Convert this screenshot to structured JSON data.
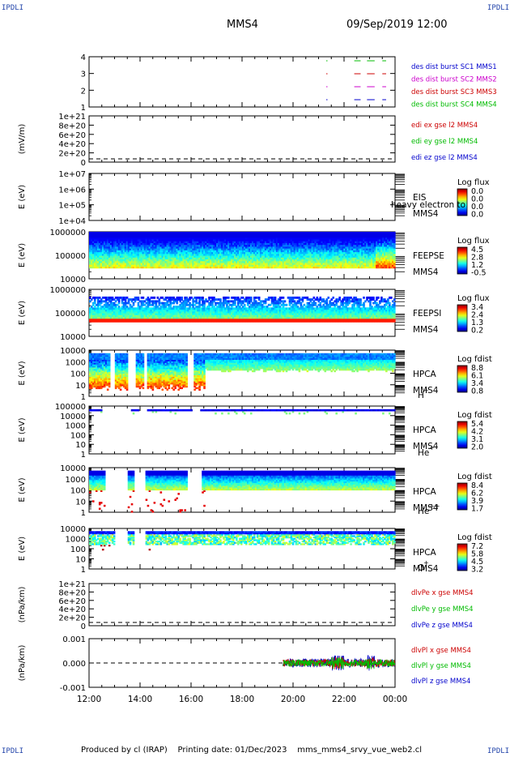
{
  "corner_label": "IPDLI",
  "header": {
    "spacecraft": "MMS4",
    "datetime": "09/Sep/2019 12:00"
  },
  "footer": {
    "producer": "Produced by cl (IRAP)",
    "printing": "Printing date: 01/Dec/2023",
    "file": "mms_mms4_srvy_vue_web2.cl"
  },
  "chart_data": {
    "type": "heatmap",
    "x_ticks": [
      "12:00",
      "14:00",
      "16:00",
      "18:00",
      "20:00",
      "22:00",
      "00:00"
    ],
    "x_range_hours": [
      12,
      24
    ],
    "panels": [
      {
        "id": "burst",
        "type": "line",
        "ytick_labels": [
          "1",
          "2",
          "3",
          "4"
        ],
        "ylabel": "",
        "legend": [
          {
            "text": "des dist burst SC1 MMS1",
            "color": "#0000cc"
          },
          {
            "text": "des dist burst SC2 MMS2",
            "color": "#cc00cc"
          },
          {
            "text": "des dist burst SC3 MMS3",
            "color": "#cc0000"
          },
          {
            "text": "des dist burst SC4 MMS4",
            "color": "#00bb00"
          }
        ],
        "segments_hours": [
          [
            21.3,
            21.35
          ],
          [
            22.4,
            22.65
          ],
          [
            22.9,
            23.2
          ],
          [
            23.5,
            23.65
          ]
        ]
      },
      {
        "id": "edi",
        "type": "line",
        "ylabel": "(mV/m)",
        "ytick_labels": [
          "0",
          "2e+20",
          "4e+20",
          "6e+20",
          "8e+20",
          "1e+21"
        ],
        "legend": [
          {
            "text": "edi ex gse l2 MMS4",
            "color": "#cc0000"
          },
          {
            "text": "edi ey gse l2 MMS4",
            "color": "#00bb00"
          },
          {
            "text": "edi ez gse l2 MMS4",
            "color": "#0000cc"
          }
        ]
      },
      {
        "id": "eis",
        "type": "heatmap",
        "ylabel": "E (eV)",
        "ytick_labels": [
          "1e+04",
          "1e+05",
          "1e+06",
          "1e+07"
        ],
        "label": "EIS",
        "label2": "MMS4",
        "overlay_text": "heavy electron to",
        "colorbar_title": "Log flux",
        "colorbar_labels": [
          "0.0",
          "0.0",
          "0.0",
          "0.0"
        ]
      },
      {
        "id": "feepse",
        "type": "heatmap",
        "ylabel": "E (eV)",
        "ytick_labels": [
          "10000",
          "100000",
          "1000000"
        ],
        "label": "FEEPSE",
        "label2": "MMS4",
        "colorbar_title": "Log flux",
        "colorbar_labels": [
          "4.5",
          "2.8",
          "1.2",
          "-0.5"
        ]
      },
      {
        "id": "feepsi",
        "type": "heatmap",
        "ylabel": "E (eV)",
        "ytick_labels": [
          "10000",
          "100000",
          "1000000"
        ],
        "label": "FEEPSI",
        "label2": "MMS4",
        "colorbar_title": "Log flux",
        "colorbar_labels": [
          "3.4",
          "2.4",
          "1.3",
          "0.2"
        ]
      },
      {
        "id": "hpca_h",
        "type": "heatmap",
        "ylabel": "E (eV)",
        "ytick_labels": [
          "1",
          "10",
          "100",
          "1000",
          "10000"
        ],
        "label": "HPCA",
        "label2": "MMS4",
        "species": "H",
        "species_sup": "+",
        "colorbar_title": "Log fdist",
        "colorbar_labels": [
          "8.8",
          "6.1",
          "3.4",
          "0.8"
        ]
      },
      {
        "id": "hpca_he",
        "type": "heatmap",
        "ylabel": "E (eV)",
        "ytick_labels": [
          "1",
          "10",
          "100",
          "1000",
          "10000",
          "100000"
        ],
        "label": "HPCA",
        "label2": "MMS4",
        "species": "He",
        "species_sup": "+",
        "colorbar_title": "Log fdist",
        "colorbar_labels": [
          "5.4",
          "4.2",
          "3.1",
          "2.0"
        ]
      },
      {
        "id": "hpca_he2",
        "type": "heatmap",
        "ylabel": "E (eV)",
        "ytick_labels": [
          "1",
          "10",
          "100",
          "1000",
          "10000"
        ],
        "label": "HPCA",
        "label2": "MMS4",
        "species": "He",
        "species_sup": "++",
        "colorbar_title": "Log fdist",
        "colorbar_labels": [
          "8.4",
          "6.2",
          "3.9",
          "1.7"
        ]
      },
      {
        "id": "hpca_o",
        "type": "heatmap",
        "ylabel": "E (eV)",
        "ytick_labels": [
          "1",
          "10",
          "100",
          "1000",
          "10000"
        ],
        "label": "HPCA",
        "label2": "MMS4",
        "species": "O",
        "species_sup": "+",
        "colorbar_title": "Log fdist",
        "colorbar_labels": [
          "7.2",
          "5.8",
          "4.5",
          "3.2"
        ]
      },
      {
        "id": "divpe",
        "type": "line",
        "ylabel": "(nPa/km)",
        "ytick_labels": [
          "0",
          "2e+20",
          "4e+20",
          "6e+20",
          "8e+20",
          "1e+21"
        ],
        "legend": [
          {
            "text": "dlvPe x gse MMS4",
            "color": "#cc0000"
          },
          {
            "text": "dlvPe y gse MMS4",
            "color": "#00bb00"
          },
          {
            "text": "dlvPe z gse MMS4",
            "color": "#0000cc"
          }
        ]
      },
      {
        "id": "divpi",
        "type": "line",
        "ylabel": "(nPa/km)",
        "ytick_labels": [
          "-0.001",
          "0.000",
          "0.001"
        ],
        "legend": [
          {
            "text": "dlvPl x gse MMS4",
            "color": "#cc0000"
          },
          {
            "text": "dlvPl y gse MMS4",
            "color": "#00bb00"
          },
          {
            "text": "dlvPl z gse MMS4",
            "color": "#0000cc"
          }
        ],
        "data_start_hour": 19.6
      }
    ]
  }
}
